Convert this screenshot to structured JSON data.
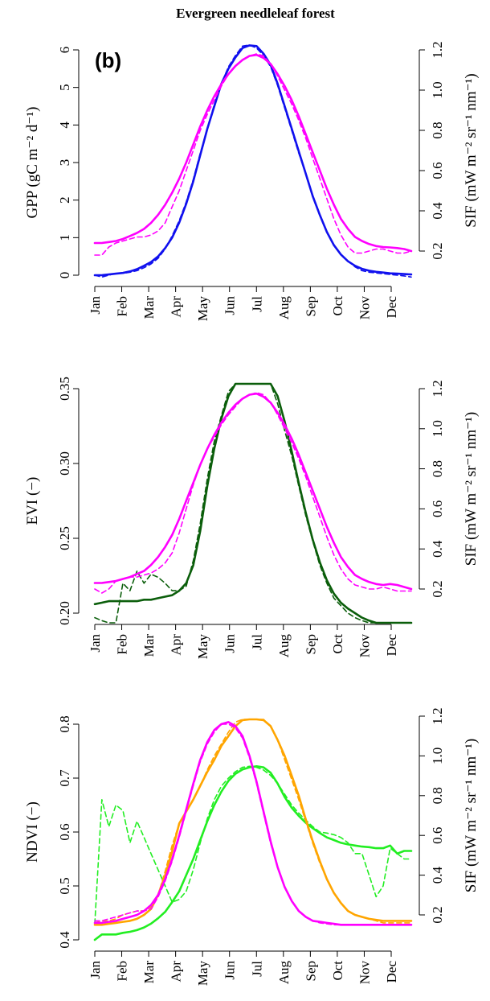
{
  "figure_title": "Evergreen needleleaf forest",
  "panel_tag": "(b)",
  "colors": {
    "gpp": "#1010ee",
    "evi": "#0b5e0b",
    "ndvi": "#22ee22",
    "ndvi2": "#ffa500",
    "sif": "#ff00ff"
  },
  "chart_data": [
    {
      "type": "line",
      "xlabel": "",
      "ylabel": "GPP (gC m⁻² d⁻¹)",
      "y2label": "SIF (mW m⁻² sr⁻¹ nm⁻¹)",
      "categories": [
        "Jan",
        "Feb",
        "Mar",
        "Apr",
        "May",
        "Jun",
        "Jul",
        "Aug",
        "Sep",
        "Oct",
        "Nov",
        "Dec"
      ],
      "x": [
        1,
        2,
        3,
        4,
        5,
        6,
        7,
        8,
        9,
        10,
        11,
        12,
        13,
        14,
        15,
        16,
        17,
        18,
        19,
        20,
        21,
        22,
        23,
        24,
        25,
        26,
        27,
        28,
        29,
        30,
        31,
        32,
        33,
        34,
        35,
        36,
        37,
        38,
        39,
        40,
        41,
        42,
        43,
        44,
        45,
        46
      ],
      "ylim": [
        0,
        6
      ],
      "yticks": [
        "0",
        "1",
        "2",
        "3",
        "4",
        "5",
        "6"
      ],
      "y2ticks": [
        "0.2",
        "0.4",
        "0.6",
        "0.8",
        "1.0",
        "1.2"
      ],
      "y2lim": [
        0.2,
        1.2
      ],
      "series": [
        {
          "name": "",
          "color_key": "gpp",
          "dashed": false,
          "axis": "left",
          "values": [
            0.0,
            0.0,
            0.02,
            0.04,
            0.06,
            0.1,
            0.16,
            0.25,
            0.35,
            0.5,
            0.72,
            1.0,
            1.4,
            1.9,
            2.5,
            3.2,
            3.9,
            4.5,
            5.1,
            5.5,
            5.8,
            6.05,
            6.12,
            6.1,
            5.9,
            5.6,
            5.1,
            4.5,
            3.9,
            3.3,
            2.7,
            2.1,
            1.6,
            1.15,
            0.8,
            0.55,
            0.37,
            0.25,
            0.17,
            0.12,
            0.09,
            0.07,
            0.05,
            0.04,
            0.03,
            0.02
          ]
        },
        {
          "name": "",
          "color_key": "gpp",
          "dashed": true,
          "axis": "left",
          "values": [
            0.0,
            -0.05,
            0.0,
            0.05,
            0.05,
            0.08,
            0.12,
            0.2,
            0.3,
            0.45,
            0.7,
            1.05,
            1.45,
            1.95,
            2.55,
            3.25,
            3.9,
            4.55,
            5.1,
            5.55,
            5.85,
            6.1,
            6.25,
            6.05,
            5.85,
            5.55,
            5.05,
            4.45,
            3.85,
            3.25,
            2.7,
            2.1,
            1.6,
            1.15,
            0.8,
            0.55,
            0.38,
            0.22,
            0.12,
            0.08,
            0.06,
            0.04,
            0.02,
            0.0,
            -0.02,
            -0.05
          ]
        },
        {
          "name": "",
          "color_key": "sif",
          "dashed": false,
          "axis": "right",
          "values": [
            0.24,
            0.24,
            0.245,
            0.25,
            0.26,
            0.275,
            0.29,
            0.31,
            0.34,
            0.38,
            0.43,
            0.49,
            0.56,
            0.64,
            0.73,
            0.82,
            0.9,
            0.97,
            1.03,
            1.08,
            1.12,
            1.15,
            1.17,
            1.175,
            1.16,
            1.13,
            1.08,
            1.02,
            0.95,
            0.87,
            0.78,
            0.69,
            0.6,
            0.51,
            0.43,
            0.36,
            0.31,
            0.27,
            0.25,
            0.235,
            0.225,
            0.22,
            0.218,
            0.215,
            0.21,
            0.2
          ]
        },
        {
          "name": "",
          "color_key": "sif",
          "dashed": true,
          "axis": "right",
          "values": [
            0.18,
            0.18,
            0.22,
            0.24,
            0.25,
            0.26,
            0.27,
            0.27,
            0.28,
            0.3,
            0.34,
            0.42,
            0.5,
            0.6,
            0.7,
            0.8,
            0.88,
            0.95,
            1.02,
            1.08,
            1.12,
            1.15,
            1.17,
            1.18,
            1.17,
            1.13,
            1.07,
            1.0,
            0.93,
            0.85,
            0.76,
            0.66,
            0.56,
            0.46,
            0.36,
            0.28,
            0.22,
            0.19,
            0.19,
            0.2,
            0.21,
            0.21,
            0.2,
            0.19,
            0.19,
            0.2
          ]
        }
      ]
    },
    {
      "type": "line",
      "xlabel": "",
      "ylabel": "EVI (−)",
      "y2label": "SIF (mW m⁻² sr⁻¹ nm⁻¹)",
      "categories": [
        "Jan",
        "Feb",
        "Mar",
        "Apr",
        "May",
        "Jun",
        "Jul",
        "Aug",
        "Sep",
        "Oct",
        "Nov",
        "Dec"
      ],
      "x": [
        1,
        2,
        3,
        4,
        5,
        6,
        7,
        8,
        9,
        10,
        11,
        12,
        13,
        14,
        15,
        16,
        17,
        18,
        19,
        20,
        21,
        22,
        23,
        24,
        25,
        26,
        27,
        28,
        29,
        30,
        31,
        32,
        33,
        34,
        35,
        36,
        37,
        38,
        39,
        40,
        41,
        42,
        43,
        44,
        45,
        46
      ],
      "ylim": [
        0.2,
        0.35
      ],
      "yticks": [
        "0.20",
        "0.25",
        "0.30",
        "0.35"
      ],
      "y2ticks": [
        "0.2",
        "0.4",
        "0.6",
        "0.8",
        "1.0",
        "1.2"
      ],
      "y2lim": [
        0.2,
        1.2
      ],
      "series": [
        {
          "name": "",
          "color_key": "evi",
          "dashed": false,
          "axis": "left",
          "values": [
            0.206,
            0.207,
            0.208,
            0.208,
            0.208,
            0.208,
            0.208,
            0.209,
            0.209,
            0.21,
            0.211,
            0.212,
            0.215,
            0.22,
            0.232,
            0.255,
            0.285,
            0.31,
            0.33,
            0.345,
            0.355,
            0.362,
            0.366,
            0.367,
            0.364,
            0.357,
            0.345,
            0.328,
            0.308,
            0.287,
            0.267,
            0.249,
            0.234,
            0.222,
            0.213,
            0.207,
            0.203,
            0.2,
            0.197,
            0.195,
            0.193,
            0.191,
            0.19,
            0.189,
            0.188,
            0.187
          ]
        },
        {
          "name": "",
          "color_key": "evi",
          "dashed": true,
          "axis": "left",
          "values": [
            0.197,
            0.195,
            0.18,
            0.185,
            0.22,
            0.215,
            0.228,
            0.22,
            0.226,
            0.224,
            0.22,
            0.215,
            0.215,
            0.218,
            0.235,
            0.26,
            0.29,
            0.315,
            0.332,
            0.348,
            0.358,
            0.365,
            0.367,
            0.365,
            0.362,
            0.354,
            0.34,
            0.322,
            0.305,
            0.285,
            0.265,
            0.248,
            0.232,
            0.22,
            0.21,
            0.205,
            0.2,
            0.197,
            0.195,
            0.193,
            0.19,
            0.19,
            0.19,
            0.19,
            0.19,
            0.19
          ]
        },
        {
          "name": "",
          "color_key": "sif",
          "dashed": false,
          "axis": "right",
          "values": [
            0.23,
            0.23,
            0.235,
            0.24,
            0.25,
            0.26,
            0.275,
            0.29,
            0.32,
            0.36,
            0.41,
            0.47,
            0.55,
            0.64,
            0.73,
            0.82,
            0.9,
            0.97,
            1.03,
            1.08,
            1.12,
            1.15,
            1.17,
            1.175,
            1.16,
            1.13,
            1.08,
            1.02,
            0.95,
            0.87,
            0.78,
            0.69,
            0.6,
            0.51,
            0.43,
            0.36,
            0.31,
            0.27,
            0.25,
            0.235,
            0.225,
            0.22,
            0.225,
            0.22,
            0.21,
            0.2
          ]
        },
        {
          "name": "",
          "color_key": "sif",
          "dashed": true,
          "axis": "right",
          "values": [
            0.2,
            0.18,
            0.2,
            0.24,
            0.25,
            0.26,
            0.26,
            0.27,
            0.28,
            0.3,
            0.33,
            0.38,
            0.48,
            0.6,
            0.72,
            0.82,
            0.9,
            0.96,
            1.02,
            1.07,
            1.11,
            1.15,
            1.17,
            1.18,
            1.17,
            1.13,
            1.07,
            1.0,
            0.93,
            0.85,
            0.76,
            0.66,
            0.56,
            0.46,
            0.37,
            0.3,
            0.25,
            0.22,
            0.21,
            0.2,
            0.2,
            0.21,
            0.2,
            0.19,
            0.19,
            0.19
          ]
        }
      ]
    },
    {
      "type": "line",
      "xlabel": "",
      "ylabel": "NDVI (−)",
      "y2label": "SIF (mW m⁻² sr⁻¹ nm⁻¹)",
      "categories": [
        "Jan",
        "Feb",
        "Mar",
        "Apr",
        "May",
        "Jun",
        "Jul",
        "Aug",
        "Sep",
        "Oct",
        "Nov",
        "Dec"
      ],
      "x": [
        1,
        2,
        3,
        4,
        5,
        6,
        7,
        8,
        9,
        10,
        11,
        12,
        13,
        14,
        15,
        16,
        17,
        18,
        19,
        20,
        21,
        22,
        23,
        24,
        25,
        26,
        27,
        28,
        29,
        30,
        31,
        32,
        33,
        34,
        35,
        36,
        37,
        38,
        39,
        40,
        41,
        42,
        43,
        44,
        45,
        46
      ],
      "ylim": [
        0.4,
        0.8
      ],
      "yticks": [
        "0.4",
        "0.5",
        "0.6",
        "0.7",
        "0.8"
      ],
      "y2ticks": [
        "0.2",
        "0.4",
        "0.6",
        "0.8",
        "1.0",
        "1.2"
      ],
      "y2lim": [
        0.2,
        1.2
      ],
      "series": [
        {
          "name": "",
          "color_key": "ndvi",
          "dashed": false,
          "axis": "left",
          "values": [
            0.4,
            0.41,
            0.41,
            0.41,
            0.413,
            0.415,
            0.418,
            0.423,
            0.43,
            0.44,
            0.452,
            0.47,
            0.49,
            0.52,
            0.55,
            0.585,
            0.62,
            0.65,
            0.675,
            0.695,
            0.708,
            0.716,
            0.72,
            0.722,
            0.72,
            0.71,
            0.69,
            0.665,
            0.645,
            0.63,
            0.617,
            0.607,
            0.598,
            0.59,
            0.585,
            0.58,
            0.577,
            0.575,
            0.573,
            0.572,
            0.57,
            0.57,
            0.575,
            0.56,
            0.565,
            0.565
          ]
        },
        {
          "name": "",
          "color_key": "ndvi",
          "dashed": true,
          "axis": "left",
          "values": [
            0.43,
            0.66,
            0.61,
            0.65,
            0.64,
            0.58,
            0.62,
            0.59,
            0.56,
            0.53,
            0.5,
            0.47,
            0.475,
            0.49,
            0.53,
            0.58,
            0.625,
            0.66,
            0.685,
            0.7,
            0.712,
            0.72,
            0.722,
            0.72,
            0.715,
            0.705,
            0.69,
            0.67,
            0.65,
            0.635,
            0.622,
            0.61,
            0.6,
            0.598,
            0.595,
            0.59,
            0.58,
            0.56,
            0.56,
            0.52,
            0.48,
            0.5,
            0.57,
            0.56,
            0.55,
            0.55
          ]
        },
        {
          "name": "",
          "color_key": "ndvi2",
          "dashed": false,
          "axis": "right",
          "values": [
            0.15,
            0.15,
            0.155,
            0.16,
            0.165,
            0.17,
            0.18,
            0.2,
            0.23,
            0.3,
            0.4,
            0.52,
            0.66,
            0.72,
            0.78,
            0.85,
            0.92,
            0.98,
            1.05,
            1.1,
            1.15,
            1.18,
            1.19,
            1.19,
            1.18,
            1.15,
            1.08,
            1.0,
            0.9,
            0.8,
            0.68,
            0.57,
            0.47,
            0.38,
            0.31,
            0.26,
            0.22,
            0.2,
            0.19,
            0.18,
            0.175,
            0.17,
            0.17,
            0.17,
            0.17,
            0.17
          ]
        },
        {
          "name": "",
          "color_key": "ndvi2",
          "dashed": true,
          "axis": "right",
          "values": [
            0.16,
            0.17,
            0.17,
            0.18,
            0.2,
            0.21,
            0.22,
            0.22,
            0.24,
            0.3,
            0.42,
            0.55,
            0.66,
            0.72,
            0.78,
            0.85,
            0.93,
            1.0,
            1.06,
            1.12,
            1.17,
            1.2,
            1.22,
            1.21,
            1.19,
            1.15,
            1.08,
            0.98,
            0.88,
            0.78,
            0.67,
            0.56,
            0.46,
            0.38,
            0.31,
            0.26,
            0.22,
            0.2,
            0.19,
            0.18,
            0.17,
            0.16,
            0.16,
            0.16,
            0.16,
            0.16
          ]
        },
        {
          "name": "",
          "color_key": "sif",
          "dashed": false,
          "axis": "right",
          "values": [
            0.16,
            0.16,
            0.165,
            0.17,
            0.18,
            0.19,
            0.2,
            0.22,
            0.25,
            0.3,
            0.38,
            0.48,
            0.6,
            0.73,
            0.86,
            0.98,
            1.07,
            1.13,
            1.16,
            1.17,
            1.15,
            1.1,
            1.0,
            0.87,
            0.72,
            0.57,
            0.44,
            0.34,
            0.27,
            0.22,
            0.19,
            0.17,
            0.165,
            0.16,
            0.155,
            0.15,
            0.15,
            0.15,
            0.15,
            0.15,
            0.15,
            0.15,
            0.15,
            0.15,
            0.15,
            0.15
          ]
        },
        {
          "name": "",
          "color_key": "sif",
          "dashed": true,
          "axis": "right",
          "values": [
            0.17,
            0.17,
            0.18,
            0.19,
            0.2,
            0.21,
            0.22,
            0.22,
            0.23,
            0.29,
            0.37,
            0.47,
            0.59,
            0.72,
            0.85,
            0.97,
            1.06,
            1.12,
            1.16,
            1.16,
            1.14,
            1.09,
            0.99,
            0.86,
            0.71,
            0.56,
            0.44,
            0.34,
            0.27,
            0.22,
            0.19,
            0.17,
            0.16,
            0.155,
            0.15,
            0.15,
            0.15,
            0.15,
            0.15,
            0.15,
            0.15,
            0.15,
            0.15,
            0.15,
            0.15,
            0.15
          ]
        }
      ]
    }
  ]
}
